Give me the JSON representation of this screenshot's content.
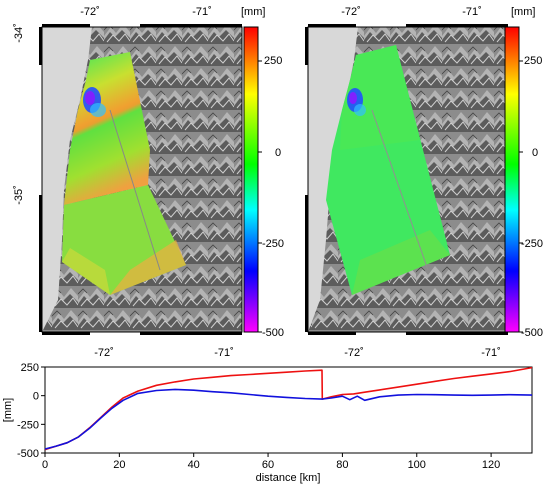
{
  "chart_data": [
    {
      "type": "map",
      "panel": "left",
      "lon_ticks": [
        "-72˚",
        "-71˚"
      ],
      "lat_ticks": [
        "-34˚",
        "-35˚"
      ],
      "colorbar": {
        "unit": "[mm]",
        "ticks": [
          "250",
          "0",
          "-250",
          "-500"
        ],
        "range": [
          -500,
          400
        ],
        "colors": [
          "#ff00ff",
          "#0000ff",
          "#00ffff",
          "#00ff00",
          "#ffff00",
          "#ff0000"
        ]
      }
    },
    {
      "type": "map",
      "panel": "right",
      "lon_ticks": [
        "-72˚",
        "-71˚"
      ],
      "lat_ticks": [],
      "colorbar": {
        "unit": "[mm]",
        "ticks": [
          "250",
          "0",
          "-250",
          "-500"
        ],
        "range": [
          -500,
          400
        ],
        "colors": [
          "#ff00ff",
          "#0000ff",
          "#00ffff",
          "#00ff00",
          "#ffff00",
          "#ff0000"
        ]
      }
    },
    {
      "type": "line",
      "xlabel": "distance [km]",
      "ylabel": "[mm]",
      "xlim": [
        0,
        131
      ],
      "ylim": [
        -500,
        250
      ],
      "xticks": [
        0,
        20,
        40,
        60,
        80,
        100,
        120
      ],
      "yticks": [
        250,
        0,
        -250,
        -500
      ],
      "series": [
        {
          "color": "#ee1111",
          "points": [
            [
              0,
              -470
            ],
            [
              3,
              -440
            ],
            [
              6,
              -410
            ],
            [
              9,
              -360
            ],
            [
              12,
              -280
            ],
            [
              15,
              -190
            ],
            [
              18,
              -100
            ],
            [
              21,
              -20
            ],
            [
              25,
              40
            ],
            [
              30,
              90
            ],
            [
              35,
              120
            ],
            [
              40,
              145
            ],
            [
              45,
              160
            ],
            [
              50,
              175
            ],
            [
              55,
              185
            ],
            [
              60,
              195
            ],
            [
              65,
              205
            ],
            [
              70,
              215
            ],
            [
              74.5,
              222
            ],
            [
              74.6,
              -30
            ],
            [
              77,
              -10
            ],
            [
              80,
              10
            ],
            [
              83,
              15
            ],
            [
              86,
              30
            ],
            [
              90,
              50
            ],
            [
              95,
              75
            ],
            [
              100,
              100
            ],
            [
              105,
              125
            ],
            [
              110,
              150
            ],
            [
              115,
              170
            ],
            [
              120,
              190
            ],
            [
              125,
              210
            ],
            [
              131,
              245
            ]
          ]
        },
        {
          "color": "#1111dd",
          "points": [
            [
              0,
              -465
            ],
            [
              3,
              -440
            ],
            [
              6,
              -410
            ],
            [
              9,
              -360
            ],
            [
              12,
              -285
            ],
            [
              15,
              -195
            ],
            [
              18,
              -110
            ],
            [
              21,
              -40
            ],
            [
              25,
              20
            ],
            [
              30,
              45
            ],
            [
              35,
              55
            ],
            [
              40,
              48
            ],
            [
              45,
              35
            ],
            [
              50,
              25
            ],
            [
              55,
              10
            ],
            [
              60,
              -5
            ],
            [
              65,
              -15
            ],
            [
              70,
              -25
            ],
            [
              74.5,
              -30
            ],
            [
              77,
              -20
            ],
            [
              80,
              -5
            ],
            [
              82,
              -35
            ],
            [
              84,
              -5
            ],
            [
              86,
              -40
            ],
            [
              90,
              -10
            ],
            [
              95,
              5
            ],
            [
              100,
              10
            ],
            [
              105,
              8
            ],
            [
              110,
              5
            ],
            [
              115,
              3
            ],
            [
              120,
              5
            ],
            [
              125,
              8
            ],
            [
              131,
              5
            ]
          ]
        }
      ]
    }
  ]
}
